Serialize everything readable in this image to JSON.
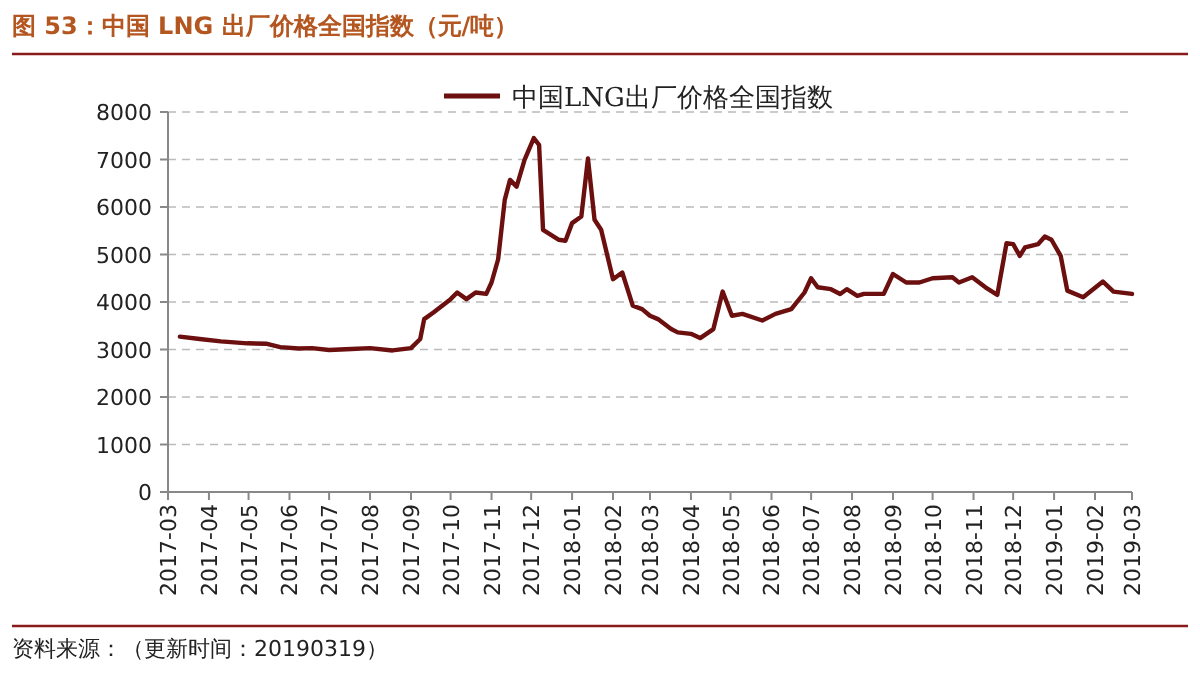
{
  "chart_data": {
    "type": "line",
    "title": "图 53：中国 LNG 出厂价格全国指数（元/吨）",
    "annotations": [
      "资料来源：（更新时间：20190319）"
    ],
    "legend": "top",
    "grid": "y",
    "line_style": "solid",
    "marker": "none",
    "ylim": [
      0,
      8000
    ],
    "yticks": [
      0,
      1000,
      2000,
      3000,
      4000,
      5000,
      6000,
      7000,
      8000
    ],
    "xlim": [
      "2017-03-01",
      "2019-03-01"
    ],
    "xticks": [
      {
        "value": "2017-03",
        "label": "2017-03"
      },
      {
        "value": "2017-04",
        "label": "2017-04"
      },
      {
        "value": "2017-05",
        "label": "2017-05"
      },
      {
        "value": "2017-06",
        "label": "2017-06"
      },
      {
        "value": "2017-07",
        "label": "2017-07"
      },
      {
        "value": "2017-08",
        "label": "2017-08"
      },
      {
        "value": "2017-09",
        "label": "2017-09"
      },
      {
        "value": "2017-10",
        "label": "2017-10"
      },
      {
        "value": "2017-11",
        "label": "2017-11"
      },
      {
        "value": "2017-12",
        "label": "2017-12"
      },
      {
        "value": "2018-01",
        "label": "2018-01"
      },
      {
        "value": "2018-02",
        "label": "2018-02"
      },
      {
        "value": "2018-03",
        "label": "2018-03"
      },
      {
        "value": "2018-04",
        "label": "2018-04"
      },
      {
        "value": "2018-05",
        "label": "2018-05"
      },
      {
        "value": "2018-06",
        "label": "2018-06"
      },
      {
        "value": "2018-07",
        "label": "2018-07"
      },
      {
        "value": "2018-08",
        "label": "2018-08"
      },
      {
        "value": "2018-09",
        "label": "2018-09"
      },
      {
        "value": "2018-10",
        "label": "2018-10"
      },
      {
        "value": "2018-11",
        "label": "2018-11"
      },
      {
        "value": "2018-12",
        "label": "2018-12"
      },
      {
        "value": "2019-01",
        "label": "2019-01"
      },
      {
        "value": "2019-02",
        "label": "2019-02"
      },
      {
        "value": "2019-03",
        "label": "2019-03"
      }
    ],
    "x": [
      "2017-03-10",
      "2017-03-25",
      "2017-04-10",
      "2017-04-30",
      "2017-05-15",
      "2017-05-25",
      "2017-06-08",
      "2017-06-18",
      "2017-07-01",
      "2017-07-18",
      "2017-08-01",
      "2017-08-18",
      "2017-09-01",
      "2017-09-08",
      "2017-09-11",
      "2017-09-18",
      "2017-10-01",
      "2017-10-06",
      "2017-10-13",
      "2017-10-20",
      "2017-10-28",
      "2017-11-01",
      "2017-11-06",
      "2017-11-11",
      "2017-11-15",
      "2017-11-20",
      "2017-11-26",
      "2017-12-03",
      "2017-12-07",
      "2017-12-10",
      "2017-12-22",
      "2017-12-27",
      "2018-01-01",
      "2018-01-08",
      "2018-01-13",
      "2018-01-18",
      "2018-01-23",
      "2018-02-01",
      "2018-02-08",
      "2018-02-16",
      "2018-02-23",
      "2018-03-01",
      "2018-03-07",
      "2018-03-17",
      "2018-03-22",
      "2018-04-01",
      "2018-04-08",
      "2018-04-18",
      "2018-04-25",
      "2018-05-02",
      "2018-05-10",
      "2018-05-25",
      "2018-06-04",
      "2018-06-16",
      "2018-06-26",
      "2018-07-01",
      "2018-07-06",
      "2018-07-16",
      "2018-07-23",
      "2018-07-28",
      "2018-08-05",
      "2018-08-10",
      "2018-08-25",
      "2018-09-01",
      "2018-09-11",
      "2018-09-21",
      "2018-10-01",
      "2018-10-16",
      "2018-10-21",
      "2018-10-31",
      "2018-11-10",
      "2018-11-19",
      "2018-11-26",
      "2018-12-01",
      "2018-12-06",
      "2018-12-10",
      "2018-12-20",
      "2018-12-25",
      "2018-12-30",
      "2019-01-06",
      "2019-01-11",
      "2019-01-23",
      "2019-02-07",
      "2019-02-15",
      "2019-03-01"
    ],
    "series": [
      {
        "name": "中国LNG出厂价格全国指数",
        "color": "#6b0f0f",
        "values": [
          3270,
          3220,
          3170,
          3130,
          3120,
          3050,
          3020,
          3030,
          2990,
          3010,
          3030,
          2980,
          3030,
          3220,
          3640,
          3780,
          4060,
          4200,
          4060,
          4200,
          4170,
          4410,
          4900,
          6150,
          6570,
          6430,
          6990,
          7450,
          7310,
          5520,
          5310,
          5290,
          5660,
          5800,
          7020,
          5730,
          5520,
          4480,
          4620,
          3920,
          3850,
          3710,
          3640,
          3430,
          3360,
          3330,
          3240,
          3430,
          4220,
          3710,
          3750,
          3610,
          3750,
          3850,
          4200,
          4500,
          4310,
          4270,
          4170,
          4270,
          4130,
          4170,
          4170,
          4590,
          4410,
          4410,
          4500,
          4520,
          4410,
          4520,
          4310,
          4150,
          5240,
          5220,
          4970,
          5150,
          5220,
          5380,
          5310,
          4970,
          4240,
          4100,
          4430,
          4220,
          4170
        ]
      }
    ]
  }
}
